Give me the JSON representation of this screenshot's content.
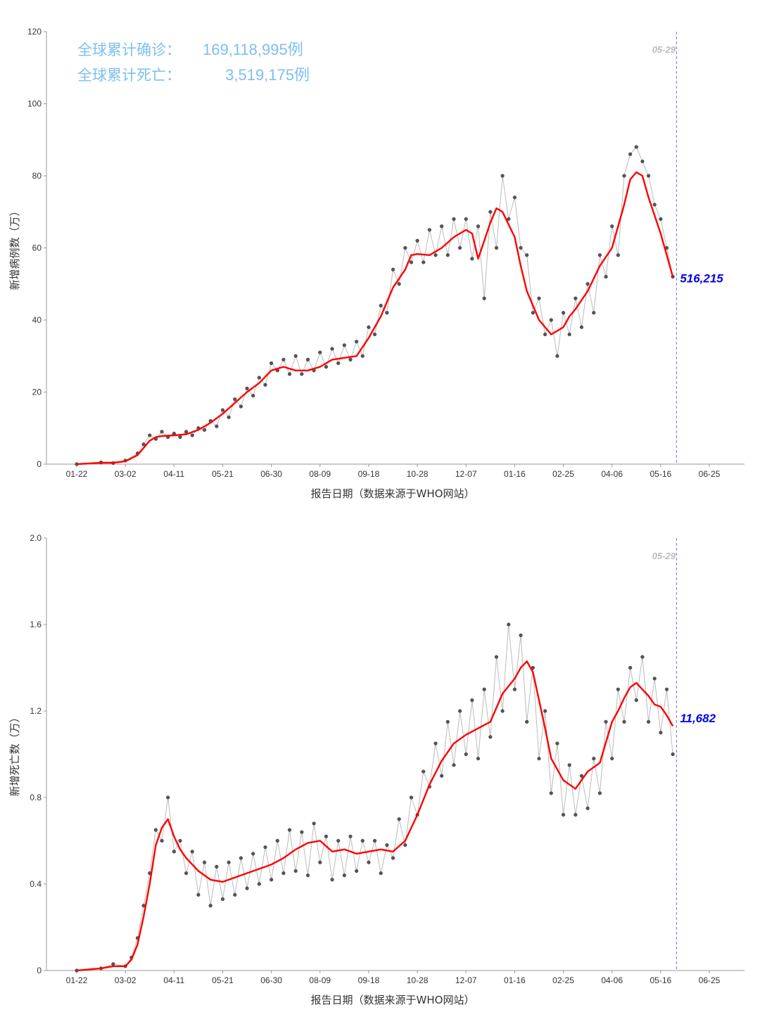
{
  "summary": {
    "cases_label": "全球累计确诊：",
    "cases_value": "169,118,995例",
    "deaths_label": "全球累计死亡：",
    "deaths_value": "3,519,175例"
  },
  "colors": {
    "points": "#555555",
    "connector": "#bbbbbb",
    "trend": "#ff0000",
    "vline": "#6a6aff",
    "end_label": "#0000ee",
    "summary": "#7ec0ee"
  },
  "chart_data": [
    {
      "type": "line",
      "ylabel": "新增病例数（万）",
      "xlabel": "报告日期（数据来源于WHO网站）",
      "ylim": [
        0,
        120
      ],
      "yticks": [
        "0",
        "20",
        "40",
        "60",
        "80",
        "100",
        "120"
      ],
      "x_tick_labels": [
        "01-22",
        "03-02",
        "04-11",
        "05-21",
        "06-30",
        "08-09",
        "09-18",
        "10-28",
        "12-07",
        "01-16",
        "02-25",
        "04-06",
        "05-16",
        "06-25"
      ],
      "x_tick_days": [
        0,
        40,
        80,
        120,
        160,
        200,
        240,
        280,
        320,
        360,
        400,
        440,
        480,
        520
      ],
      "vline": {
        "day": 493,
        "label": "05-29"
      },
      "end_label": "516,215",
      "end_value": 51.6,
      "grid": false,
      "series": [
        {
          "role": "trend",
          "x": [
            0,
            20,
            30,
            40,
            50,
            60,
            65,
            70,
            80,
            90,
            100,
            110,
            120,
            130,
            140,
            150,
            160,
            170,
            180,
            190,
            200,
            210,
            220,
            230,
            240,
            250,
            260,
            270,
            275,
            280,
            290,
            300,
            310,
            315,
            320,
            325,
            330,
            335,
            340,
            345,
            350,
            360,
            365,
            370,
            380,
            390,
            400,
            405,
            410,
            420,
            430,
            440,
            450,
            455,
            460,
            465,
            470,
            475,
            480,
            485,
            490
          ],
          "y": [
            0,
            0.4,
            0.4,
            0.8,
            2.5,
            6.5,
            7.5,
            7.8,
            8,
            8.3,
            9.5,
            11.5,
            14,
            17,
            20,
            22.5,
            26,
            27,
            26,
            26,
            27,
            29,
            29.5,
            30,
            35,
            41,
            49,
            54,
            58,
            58.3,
            58,
            60,
            63,
            64,
            65,
            64,
            57,
            62,
            67,
            71,
            70,
            63,
            55,
            48,
            40,
            36,
            38,
            41,
            43,
            48,
            55,
            60,
            72,
            79,
            81,
            80,
            74,
            69,
            64,
            58,
            52
          ]
        },
        {
          "role": "daily",
          "x": [
            0,
            20,
            30,
            40,
            50,
            55,
            60,
            65,
            70,
            75,
            80,
            85,
            90,
            95,
            100,
            105,
            110,
            115,
            120,
            125,
            130,
            135,
            140,
            145,
            150,
            155,
            160,
            165,
            170,
            175,
            180,
            185,
            190,
            195,
            200,
            205,
            210,
            215,
            220,
            225,
            230,
            235,
            240,
            245,
            250,
            255,
            260,
            265,
            270,
            275,
            280,
            285,
            290,
            295,
            300,
            305,
            310,
            315,
            320,
            325,
            330,
            335,
            340,
            345,
            350,
            355,
            360,
            365,
            370,
            375,
            380,
            385,
            390,
            395,
            400,
            405,
            410,
            415,
            420,
            425,
            430,
            435,
            440,
            445,
            450,
            455,
            460,
            465,
            470,
            475,
            480,
            485,
            490
          ],
          "y": [
            0,
            0.5,
            0.3,
            1,
            3,
            5.5,
            8,
            7,
            9,
            7.5,
            8.5,
            7.5,
            9,
            8,
            10,
            9.5,
            12,
            10.5,
            15,
            13,
            18,
            16,
            21,
            19,
            24,
            22,
            28,
            26,
            29,
            25,
            30,
            25,
            29,
            26,
            31,
            27,
            32,
            28,
            33,
            29,
            34,
            30,
            38,
            36,
            44,
            42,
            54,
            50,
            60,
            56,
            62,
            56,
            65,
            58,
            66,
            58,
            68,
            60,
            68,
            57,
            66,
            46,
            70,
            60,
            80,
            68,
            74,
            60,
            58,
            42,
            46,
            36,
            40,
            30,
            42,
            36,
            46,
            38,
            50,
            42,
            58,
            52,
            66,
            58,
            80,
            86,
            88,
            84,
            80,
            72,
            68,
            60,
            52
          ]
        }
      ]
    },
    {
      "type": "line",
      "ylabel": "新增死亡数（万）",
      "xlabel": "报告日期（数据来源于WHO网站）",
      "ylim": [
        0,
        2.0
      ],
      "yticks": [
        "0",
        "0.4",
        "0.8",
        "1.2",
        "1.6",
        "2.0"
      ],
      "x_tick_labels": [
        "01-22",
        "03-02",
        "04-11",
        "05-21",
        "06-30",
        "08-09",
        "09-18",
        "10-28",
        "12-07",
        "01-16",
        "02-25",
        "04-06",
        "05-16",
        "06-25"
      ],
      "x_tick_days": [
        0,
        40,
        80,
        120,
        160,
        200,
        240,
        280,
        320,
        360,
        400,
        440,
        480,
        520
      ],
      "vline": {
        "day": 493,
        "label": "05-29"
      },
      "end_label": "11,682",
      "end_value": 1.168,
      "grid": false,
      "series": [
        {
          "role": "trend",
          "x": [
            0,
            20,
            30,
            40,
            45,
            50,
            55,
            60,
            65,
            70,
            75,
            80,
            85,
            90,
            100,
            110,
            120,
            130,
            140,
            150,
            160,
            170,
            180,
            190,
            200,
            210,
            220,
            230,
            240,
            250,
            260,
            270,
            280,
            290,
            300,
            310,
            320,
            330,
            340,
            350,
            360,
            365,
            370,
            375,
            380,
            385,
            390,
            400,
            410,
            420,
            430,
            440,
            445,
            450,
            455,
            460,
            465,
            470,
            475,
            480,
            485,
            490
          ],
          "y": [
            0,
            0.01,
            0.02,
            0.02,
            0.05,
            0.12,
            0.25,
            0.4,
            0.58,
            0.66,
            0.7,
            0.62,
            0.56,
            0.52,
            0.46,
            0.42,
            0.41,
            0.43,
            0.45,
            0.47,
            0.49,
            0.52,
            0.56,
            0.59,
            0.6,
            0.55,
            0.56,
            0.54,
            0.55,
            0.56,
            0.55,
            0.6,
            0.72,
            0.86,
            0.97,
            1.05,
            1.09,
            1.12,
            1.15,
            1.28,
            1.35,
            1.4,
            1.43,
            1.38,
            1.25,
            1.12,
            0.98,
            0.88,
            0.84,
            0.92,
            0.96,
            1.15,
            1.2,
            1.26,
            1.31,
            1.33,
            1.3,
            1.27,
            1.23,
            1.22,
            1.18,
            1.13
          ]
        },
        {
          "role": "daily",
          "x": [
            0,
            20,
            30,
            40,
            45,
            50,
            55,
            60,
            65,
            70,
            75,
            80,
            85,
            90,
            95,
            100,
            105,
            110,
            115,
            120,
            125,
            130,
            135,
            140,
            145,
            150,
            155,
            160,
            165,
            170,
            175,
            180,
            185,
            190,
            195,
            200,
            205,
            210,
            215,
            220,
            225,
            230,
            235,
            240,
            245,
            250,
            255,
            260,
            265,
            270,
            275,
            280,
            285,
            290,
            295,
            300,
            305,
            310,
            315,
            320,
            325,
            330,
            335,
            340,
            345,
            350,
            355,
            360,
            365,
            370,
            375,
            380,
            385,
            390,
            395,
            400,
            405,
            410,
            415,
            420,
            425,
            430,
            435,
            440,
            445,
            450,
            455,
            460,
            465,
            470,
            475,
            480,
            485,
            490
          ],
          "y": [
            0,
            0.01,
            0.03,
            0.02,
            0.06,
            0.15,
            0.3,
            0.45,
            0.65,
            0.6,
            0.8,
            0.55,
            0.6,
            0.45,
            0.55,
            0.35,
            0.5,
            0.3,
            0.48,
            0.33,
            0.5,
            0.35,
            0.52,
            0.38,
            0.54,
            0.4,
            0.57,
            0.42,
            0.6,
            0.45,
            0.65,
            0.46,
            0.64,
            0.44,
            0.68,
            0.5,
            0.62,
            0.42,
            0.6,
            0.44,
            0.62,
            0.46,
            0.6,
            0.5,
            0.6,
            0.45,
            0.58,
            0.52,
            0.7,
            0.58,
            0.8,
            0.72,
            0.92,
            0.85,
            1.05,
            0.9,
            1.15,
            0.95,
            1.2,
            1.0,
            1.25,
            0.98,
            1.3,
            1.08,
            1.45,
            1.2,
            1.6,
            1.3,
            1.55,
            1.15,
            1.4,
            0.98,
            1.2,
            0.82,
            1.05,
            0.72,
            0.95,
            0.72,
            0.9,
            0.75,
            0.98,
            0.82,
            1.15,
            0.98,
            1.3,
            1.15,
            1.4,
            1.25,
            1.45,
            1.15,
            1.35,
            1.1,
            1.3,
            1.0
          ]
        }
      ]
    }
  ]
}
